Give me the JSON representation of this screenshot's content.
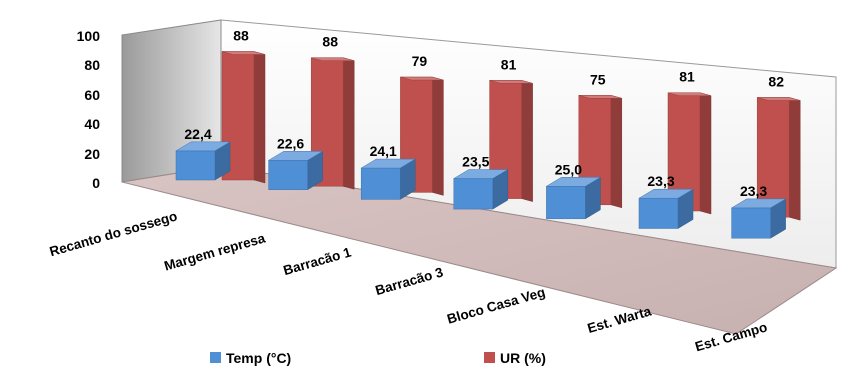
{
  "chart_data": {
    "type": "bar",
    "title": "",
    "xlabel": "",
    "ylabel": "",
    "ylim": [
      0,
      100
    ],
    "yticks": [
      "0",
      "20",
      "40",
      "60",
      "80",
      "100"
    ],
    "categories": [
      "Recanto do sossego",
      "Margem represa",
      "Barracão  1",
      "Barracão  3",
      "Bloco Casa Veg",
      "Est. Warta",
      "Est. Campo"
    ],
    "series": [
      {
        "name": "Temp (°C)",
        "values": [
          22.4,
          22.6,
          24.1,
          23.5,
          25.0,
          23.3,
          23.3
        ],
        "labels": [
          "22,4",
          "22,6",
          "24,1",
          "23,5",
          "25,0",
          "23,3",
          "23,3"
        ],
        "color": "#4f8fd6"
      },
      {
        "name": "UR (%)",
        "values": [
          88,
          88,
          79,
          81,
          75,
          81,
          82
        ],
        "labels": [
          "88",
          "88",
          "79",
          "81",
          "75",
          "81",
          "82"
        ],
        "color": "#c0504d"
      }
    ],
    "legend_position": "bottom",
    "grid": false,
    "style": "3d-column"
  }
}
